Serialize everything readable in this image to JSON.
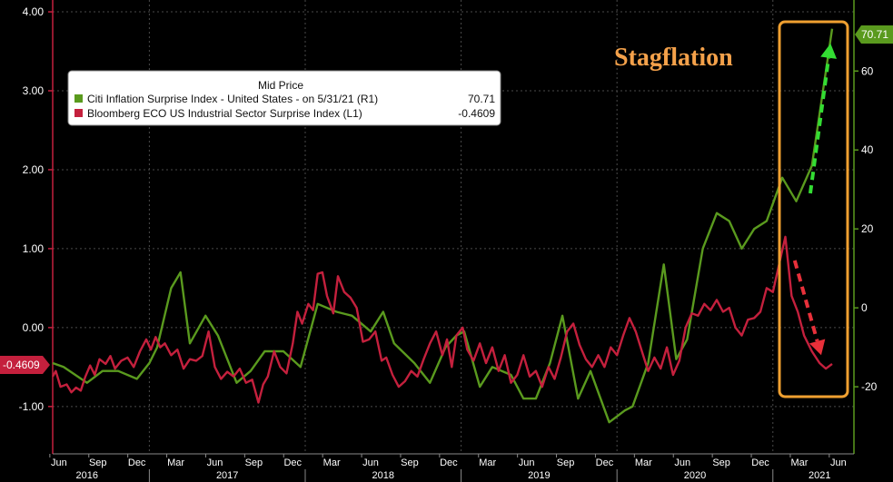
{
  "chart_data": {
    "type": "line",
    "title": "",
    "annotation": "Stagflation",
    "legend": {
      "title": "Mid Price",
      "entries": [
        {
          "series": "citi",
          "label": "Citi Inflation Surprise Index - United States - on 5/31/21 (R1)",
          "value": "70.71",
          "color": "#5a9a1e"
        },
        {
          "series": "eco",
          "label": "Bloomberg ECO US Industrial Sector Surprise Index (L1)",
          "value": "-0.4609",
          "color": "#c4203d"
        }
      ],
      "placement": "top-left"
    },
    "left_axis": {
      "ylim": [
        -1.6,
        4.15
      ],
      "ticks": [
        {
          "value": 4.0,
          "label": "4.00"
        },
        {
          "value": 3.0,
          "label": "3.00"
        },
        {
          "value": 2.0,
          "label": "2.00"
        },
        {
          "value": 1.0,
          "label": "1.00"
        },
        {
          "value": 0.0,
          "label": "0.00"
        },
        {
          "value": -1.0,
          "label": "-1.00"
        }
      ],
      "last_value_badge": "-0.4609",
      "last_value": -0.4609,
      "badge_color": "#c4203d"
    },
    "right_axis": {
      "ylim": [
        -37,
        78
      ],
      "ticks": [
        {
          "value": 60,
          "label": "60"
        },
        {
          "value": 40,
          "label": "40"
        },
        {
          "value": 20,
          "label": "20"
        },
        {
          "value": 0,
          "label": "0"
        },
        {
          "value": -20,
          "label": "-20"
        }
      ],
      "last_value_badge": "70.71",
      "last_value": 70.71,
      "badge_color": "#5a9a1e"
    },
    "xlim": [
      2016.38,
      2021.52
    ],
    "month_ticks": [
      {
        "x": 2016.42,
        "label": "Jun"
      },
      {
        "x": 2016.67,
        "label": "Sep"
      },
      {
        "x": 2016.92,
        "label": "Dec"
      },
      {
        "x": 2017.17,
        "label": "Mar"
      },
      {
        "x": 2017.42,
        "label": "Jun"
      },
      {
        "x": 2017.67,
        "label": "Sep"
      },
      {
        "x": 2017.92,
        "label": "Dec"
      },
      {
        "x": 2018.17,
        "label": "Mar"
      },
      {
        "x": 2018.42,
        "label": "Jun"
      },
      {
        "x": 2018.67,
        "label": "Sep"
      },
      {
        "x": 2018.92,
        "label": "Dec"
      },
      {
        "x": 2019.17,
        "label": "Mar"
      },
      {
        "x": 2019.42,
        "label": "Jun"
      },
      {
        "x": 2019.67,
        "label": "Sep"
      },
      {
        "x": 2019.92,
        "label": "Dec"
      },
      {
        "x": 2020.17,
        "label": "Mar"
      },
      {
        "x": 2020.42,
        "label": "Jun"
      },
      {
        "x": 2020.67,
        "label": "Sep"
      },
      {
        "x": 2020.92,
        "label": "Dec"
      },
      {
        "x": 2021.17,
        "label": "Mar"
      },
      {
        "x": 2021.42,
        "label": "Jun"
      }
    ],
    "year_labels": [
      {
        "x": 2016.6,
        "label": "2016"
      },
      {
        "x": 2017.5,
        "label": "2017"
      },
      {
        "x": 2018.5,
        "label": "2018"
      },
      {
        "x": 2019.5,
        "label": "2019"
      },
      {
        "x": 2020.5,
        "label": "2020"
      },
      {
        "x": 2021.3,
        "label": "2021"
      }
    ],
    "series": [
      {
        "name": "Citi Inflation Surprise Index - United States",
        "key": "citi",
        "axis": "right",
        "color": "#5a9a1e",
        "points": [
          [
            2016.38,
            -14
          ],
          [
            2016.45,
            -15
          ],
          [
            2016.6,
            -19
          ],
          [
            2016.7,
            -16
          ],
          [
            2016.8,
            -16
          ],
          [
            2016.92,
            -18
          ],
          [
            2017.0,
            -14
          ],
          [
            2017.05,
            -10
          ],
          [
            2017.14,
            5
          ],
          [
            2017.2,
            9
          ],
          [
            2017.26,
            -9
          ],
          [
            2017.36,
            -2
          ],
          [
            2017.44,
            -7
          ],
          [
            2017.56,
            -19
          ],
          [
            2017.65,
            -16
          ],
          [
            2017.74,
            -11
          ],
          [
            2017.86,
            -11
          ],
          [
            2017.97,
            -15
          ],
          [
            2018.08,
            1
          ],
          [
            2018.2,
            -1
          ],
          [
            2018.3,
            -2
          ],
          [
            2018.42,
            -6
          ],
          [
            2018.5,
            -1
          ],
          [
            2018.57,
            -9
          ],
          [
            2018.7,
            -14
          ],
          [
            2018.8,
            -19
          ],
          [
            2018.9,
            -10
          ],
          [
            2018.97,
            -7
          ],
          [
            2019.02,
            -6
          ],
          [
            2019.12,
            -20
          ],
          [
            2019.2,
            -15
          ],
          [
            2019.32,
            -17
          ],
          [
            2019.4,
            -23
          ],
          [
            2019.48,
            -23
          ],
          [
            2019.57,
            -14
          ],
          [
            2019.65,
            -2
          ],
          [
            2019.75,
            -23
          ],
          [
            2019.83,
            -16
          ],
          [
            2019.95,
            -29
          ],
          [
            2020.05,
            -26
          ],
          [
            2020.1,
            -25
          ],
          [
            2020.2,
            -14
          ],
          [
            2020.3,
            11
          ],
          [
            2020.38,
            -13
          ],
          [
            2020.45,
            -8
          ],
          [
            2020.55,
            15
          ],
          [
            2020.64,
            24
          ],
          [
            2020.72,
            22
          ],
          [
            2020.8,
            15
          ],
          [
            2020.88,
            20
          ],
          [
            2020.96,
            22
          ],
          [
            2021.06,
            33
          ],
          [
            2021.15,
            27
          ],
          [
            2021.25,
            36
          ],
          [
            2021.31,
            52
          ],
          [
            2021.38,
            70.71
          ]
        ]
      },
      {
        "name": "Bloomberg ECO US Industrial Sector Surprise Index",
        "key": "eco",
        "axis": "left",
        "color": "#c4203d",
        "points": [
          [
            2016.38,
            -0.62
          ],
          [
            2016.4,
            -0.55
          ],
          [
            2016.43,
            -0.75
          ],
          [
            2016.47,
            -0.72
          ],
          [
            2016.5,
            -0.82
          ],
          [
            2016.53,
            -0.76
          ],
          [
            2016.56,
            -0.8
          ],
          [
            2016.59,
            -0.62
          ],
          [
            2016.62,
            -0.48
          ],
          [
            2016.65,
            -0.6
          ],
          [
            2016.68,
            -0.4
          ],
          [
            2016.72,
            -0.46
          ],
          [
            2016.75,
            -0.36
          ],
          [
            2016.78,
            -0.52
          ],
          [
            2016.82,
            -0.42
          ],
          [
            2016.86,
            -0.38
          ],
          [
            2016.9,
            -0.5
          ],
          [
            2016.94,
            -0.3
          ],
          [
            2016.98,
            -0.15
          ],
          [
            2017.01,
            -0.28
          ],
          [
            2017.04,
            -0.12
          ],
          [
            2017.07,
            -0.25
          ],
          [
            2017.1,
            -0.2
          ],
          [
            2017.14,
            -0.35
          ],
          [
            2017.18,
            -0.28
          ],
          [
            2017.22,
            -0.52
          ],
          [
            2017.26,
            -0.4
          ],
          [
            2017.3,
            -0.42
          ],
          [
            2017.34,
            -0.36
          ],
          [
            2017.38,
            -0.05
          ],
          [
            2017.42,
            -0.5
          ],
          [
            2017.46,
            -0.65
          ],
          [
            2017.5,
            -0.56
          ],
          [
            2017.54,
            -0.62
          ],
          [
            2017.58,
            -0.52
          ],
          [
            2017.62,
            -0.7
          ],
          [
            2017.66,
            -0.66
          ],
          [
            2017.7,
            -0.95
          ],
          [
            2017.73,
            -0.72
          ],
          [
            2017.76,
            -0.62
          ],
          [
            2017.8,
            -0.3
          ],
          [
            2017.84,
            -0.5
          ],
          [
            2017.88,
            -0.58
          ],
          [
            2017.92,
            -0.2
          ],
          [
            2017.95,
            0.2
          ],
          [
            2017.98,
            0.05
          ],
          [
            2018.02,
            0.3
          ],
          [
            2018.05,
            0.22
          ],
          [
            2018.08,
            0.68
          ],
          [
            2018.11,
            0.7
          ],
          [
            2018.14,
            0.4
          ],
          [
            2018.18,
            0.18
          ],
          [
            2018.21,
            0.65
          ],
          [
            2018.25,
            0.45
          ],
          [
            2018.29,
            0.38
          ],
          [
            2018.33,
            0.25
          ],
          [
            2018.37,
            -0.18
          ],
          [
            2018.41,
            -0.15
          ],
          [
            2018.45,
            -0.05
          ],
          [
            2018.49,
            -0.42
          ],
          [
            2018.52,
            -0.38
          ],
          [
            2018.56,
            -0.6
          ],
          [
            2018.6,
            -0.75
          ],
          [
            2018.64,
            -0.68
          ],
          [
            2018.68,
            -0.55
          ],
          [
            2018.72,
            -0.62
          ],
          [
            2018.76,
            -0.4
          ],
          [
            2018.8,
            -0.2
          ],
          [
            2018.84,
            -0.05
          ],
          [
            2018.88,
            -0.35
          ],
          [
            2018.91,
            -0.15
          ],
          [
            2018.94,
            -0.5
          ],
          [
            2018.97,
            -0.1
          ],
          [
            2019.01,
            0.0
          ],
          [
            2019.04,
            -0.28
          ],
          [
            2019.08,
            -0.42
          ],
          [
            2019.12,
            -0.2
          ],
          [
            2019.16,
            -0.45
          ],
          [
            2019.2,
            -0.25
          ],
          [
            2019.24,
            -0.55
          ],
          [
            2019.28,
            -0.35
          ],
          [
            2019.32,
            -0.7
          ],
          [
            2019.36,
            -0.6
          ],
          [
            2019.4,
            -0.35
          ],
          [
            2019.44,
            -0.62
          ],
          [
            2019.48,
            -0.55
          ],
          [
            2019.52,
            -0.75
          ],
          [
            2019.56,
            -0.5
          ],
          [
            2019.6,
            -0.65
          ],
          [
            2019.64,
            -0.38
          ],
          [
            2019.68,
            -0.05
          ],
          [
            2019.72,
            0.05
          ],
          [
            2019.76,
            -0.22
          ],
          [
            2019.8,
            -0.4
          ],
          [
            2019.84,
            -0.5
          ],
          [
            2019.88,
            -0.35
          ],
          [
            2019.92,
            -0.5
          ],
          [
            2019.96,
            -0.25
          ],
          [
            2020.0,
            -0.35
          ],
          [
            2020.04,
            -0.1
          ],
          [
            2020.08,
            0.12
          ],
          [
            2020.12,
            -0.05
          ],
          [
            2020.16,
            -0.3
          ],
          [
            2020.2,
            -0.55
          ],
          [
            2020.24,
            -0.38
          ],
          [
            2020.28,
            -0.52
          ],
          [
            2020.32,
            -0.25
          ],
          [
            2020.36,
            -0.6
          ],
          [
            2020.4,
            -0.42
          ],
          [
            2020.44,
            0.0
          ],
          [
            2020.48,
            0.18
          ],
          [
            2020.52,
            0.15
          ],
          [
            2020.56,
            0.3
          ],
          [
            2020.6,
            0.22
          ],
          [
            2020.64,
            0.35
          ],
          [
            2020.68,
            0.2
          ],
          [
            2020.72,
            0.25
          ],
          [
            2020.76,
            0.0
          ],
          [
            2020.8,
            -0.1
          ],
          [
            2020.84,
            0.1
          ],
          [
            2020.88,
            0.12
          ],
          [
            2020.92,
            0.2
          ],
          [
            2020.96,
            0.5
          ],
          [
            2021.0,
            0.45
          ],
          [
            2021.04,
            0.8
          ],
          [
            2021.08,
            1.15
          ],
          [
            2021.12,
            0.4
          ],
          [
            2021.16,
            0.2
          ],
          [
            2021.2,
            -0.1
          ],
          [
            2021.25,
            -0.3
          ],
          [
            2021.3,
            -0.45
          ],
          [
            2021.34,
            -0.52
          ],
          [
            2021.38,
            -0.4609
          ]
        ]
      }
    ],
    "trend_arrows": [
      {
        "key": "up",
        "color": "#33dd33",
        "from": [
          2021.24,
          29
        ],
        "to": [
          2021.37,
          67
        ],
        "axis": "right"
      },
      {
        "key": "down",
        "color": "#e8303a",
        "from": [
          2021.14,
          0.85
        ],
        "to": [
          2021.31,
          -0.35
        ],
        "axis": "left"
      }
    ]
  }
}
